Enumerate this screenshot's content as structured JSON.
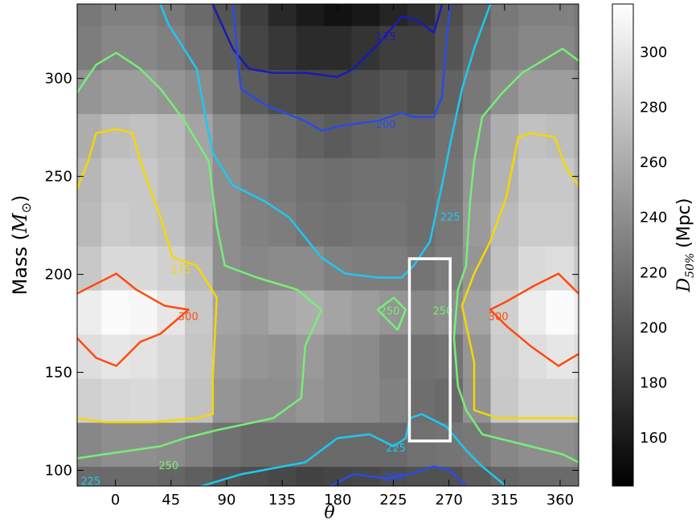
{
  "chart_data": {
    "type": "heatmap",
    "xlabel": "θ",
    "ylabel": {
      "text": "Mass (",
      "symbol": "M",
      "subscript": "⊙",
      "close": ")"
    },
    "colorbar_label": {
      "symbol": "D",
      "subscript": "50%",
      "unit": "(Mpc)"
    },
    "xlim": [
      -31,
      375
    ],
    "ylim": [
      92,
      338
    ],
    "xticks": [
      0,
      45,
      90,
      135,
      180,
      225,
      270,
      315,
      360
    ],
    "yticks": [
      100,
      150,
      200,
      250,
      300
    ],
    "clim": [
      142.5,
      317.5
    ],
    "cticks": [
      160,
      180,
      200,
      220,
      240,
      260,
      280,
      300
    ],
    "x_bins": [
      -33.75,
      -11.25,
      11.25,
      33.75,
      56.25,
      78.75,
      101.25,
      123.75,
      146.25,
      168.75,
      191.25,
      213.75,
      236.25,
      258.75,
      281.25,
      303.75,
      326.25,
      348.75,
      371.25,
      393.75
    ],
    "y_bins": [
      79.5,
      102,
      124.5,
      147,
      169.5,
      192,
      214.5,
      237,
      259.5,
      282,
      304.5,
      327,
      349.5
    ],
    "z": [
      [
        215,
        215,
        215,
        212,
        208,
        200,
        195,
        192,
        188,
        190,
        192,
        195,
        198,
        198,
        205,
        212,
        215,
        215,
        215
      ],
      [
        235,
        240,
        240,
        238,
        230,
        220,
        215,
        215,
        215,
        215,
        215,
        215,
        220,
        222,
        225,
        235,
        240,
        240,
        235
      ],
      [
        285,
        290,
        292,
        288,
        275,
        245,
        240,
        240,
        245,
        240,
        238,
        232,
        218,
        215,
        242,
        280,
        290,
        290,
        285
      ],
      [
        295,
        300,
        298,
        292,
        278,
        250,
        245,
        242,
        248,
        240,
        238,
        228,
        220,
        222,
        245,
        282,
        295,
        300,
        295
      ],
      [
        305,
        315,
        312,
        300,
        280,
        255,
        250,
        258,
        262,
        255,
        250,
        245,
        235,
        240,
        255,
        285,
        305,
        315,
        305
      ],
      [
        280,
        292,
        292,
        285,
        270,
        240,
        235,
        238,
        238,
        230,
        228,
        228,
        222,
        228,
        245,
        275,
        292,
        295,
        280
      ],
      [
        270,
        282,
        280,
        275,
        262,
        240,
        232,
        228,
        222,
        220,
        222,
        222,
        218,
        225,
        248,
        270,
        282,
        282,
        270
      ],
      [
        268,
        280,
        280,
        272,
        258,
        240,
        230,
        225,
        220,
        218,
        220,
        220,
        218,
        222,
        245,
        265,
        280,
        280,
        268
      ],
      [
        262,
        272,
        275,
        270,
        255,
        238,
        225,
        218,
        210,
        205,
        210,
        212,
        210,
        220,
        240,
        262,
        275,
        272,
        262
      ],
      [
        245,
        250,
        250,
        245,
        238,
        220,
        205,
        195,
        190,
        190,
        195,
        200,
        195,
        210,
        225,
        240,
        250,
        250,
        245
      ],
      [
        228,
        235,
        235,
        230,
        222,
        205,
        190,
        180,
        172,
        172,
        178,
        185,
        185,
        200,
        215,
        228,
        235,
        235,
        228
      ],
      [
        225,
        230,
        230,
        225,
        215,
        200,
        185,
        170,
        160,
        155,
        158,
        168,
        175,
        195,
        210,
        225,
        230,
        230,
        225
      ]
    ],
    "contours": [
      {
        "level": 175,
        "color": "#1a1ab8",
        "paths": [
          {
            "x": [
              78.8,
              95,
              108.1,
              127.6,
              153.6,
              179.7,
              192.7,
              212.2,
              231.8,
              244.8,
              257.8,
              264.3
            ],
            "y": [
              337.7,
              315.2,
              304.9,
              302.9,
              302.9,
              300.8,
              304.9,
              317.2,
              331.6,
              329.5,
              323.4,
              337.7
            ]
          }
        ],
        "labels": [
          {
            "x": 219,
            "y": 321
          }
        ]
      },
      {
        "level": 200,
        "color": "#2a4be6",
        "paths": [
          {
            "x": [
              95,
              98.3,
              101.6,
              121.1,
              153.6,
              166.7,
              186.2,
              212.2,
              231.8,
              241.5,
              257.8,
              264.3,
              267.6,
              270.8
            ],
            "y": [
              337.7,
              315.2,
              294.7,
              286.5,
              278.3,
              273.4,
              276.2,
              278.3,
              282.4,
              280.3,
              280.3,
              290.6,
              315.2,
              337.7
            ]
          },
          {
            "x": [
              173.2,
              192.7,
              218.8,
              238.3,
              257.8,
              270.8,
              283.9
            ],
            "y": [
              91.8,
              98,
              95.9,
              98,
              102,
              100,
              91.8
            ]
          }
        ],
        "labels": [
          {
            "x": 219,
            "y": 276
          },
          {
            "x": 225,
            "y": 96
          }
        ]
      },
      {
        "level": 225,
        "color": "#1ec8f0",
        "paths": [
          {
            "x": [
              36.5,
              43,
              65.8,
              72.3,
              78.8,
              95,
              121,
              140.6,
              166.7,
              186.2,
              212.2,
              231.8,
              241.5,
              254.6,
              264.3,
              270.8,
              280.6,
              290.4,
              303.4
            ],
            "y": [
              337.7,
              327.5,
              304.9,
              282.4,
              261.9,
              245.5,
              237.3,
              229.1,
              208.6,
              200.4,
              198.4,
              198.4,
              204.5,
              216.8,
              245.5,
              266,
              294.7,
              315.2,
              337.7
            ]
          },
          {
            "x": [
              69,
              101.6,
              153.6,
              179.7,
              205.7,
              225.3,
              235,
              238.3,
              248,
              267.6,
              283.9,
              296.9,
              316.4
            ],
            "y": [
              91.8,
              98,
              104.1,
              116.4,
              118.4,
              112.3,
              116.4,
              126.6,
              128.7,
              122.5,
              110.2,
              102,
              91.8
            ]
          }
        ],
        "labels": [
          {
            "x": 271,
            "y": 229
          },
          {
            "x": 227,
            "y": 111
          },
          {
            "x": -20,
            "y": 94
          }
        ]
      },
      {
        "level": 250,
        "color": "#77ee77",
        "paths": [
          {
            "x": [
              -31.2,
              -15.6,
              0.7,
              20.2,
              36.5,
              56,
              75.5,
              82,
              88.5,
              114.6,
              147.1,
              166.7,
              153.6,
              150.4,
              127.6,
              82,
              56,
              36.5,
              -9.1,
              -31.2
            ],
            "y": [
              292.6,
              307,
              313.1,
              304.9,
              294.7,
              278.3,
              257.8,
              225,
              204.5,
              198.4,
              192.2,
              182,
              163.5,
              136.9,
              126.6,
              120.5,
              116.4,
              112.3,
              108.2,
              106.1
            ]
          },
          {
            "x": [
              375,
              362,
              345.7,
              329.4,
              313.2,
              296.9,
              290.4,
              287.1,
              283.9,
              277.3,
              274.1,
              277.3,
              283.9,
              296.9,
              335.9,
              362,
              375
            ],
            "y": [
              309,
              315.2,
              309,
              302.9,
              292.6,
              280.3,
              257.8,
              237.3,
              204.5,
              192.2,
              167.6,
              143,
              130.7,
              118.4,
              112.3,
              108.2,
              104.1
            ]
          },
          {
            "x": [
              212.2,
              225.3,
              235,
              228.5,
              222,
              212.2
            ],
            "y": [
              182,
              188.1,
              182,
              171.7,
              175.8,
              182
            ]
          }
        ],
        "labels": [
          {
            "x": 43,
            "y": 102
          },
          {
            "x": 222,
            "y": 181
          },
          {
            "x": 265,
            "y": 181
          }
        ]
      },
      {
        "level": 275,
        "color": "#f5d800",
        "paths": [
          {
            "x": [
              -31.2,
              -22.1,
              -15.6,
              0.7,
              13.7,
              23.4,
              36.5,
              46.2,
              65.8,
              82,
              78.8,
              78.8,
              65.8,
              29.9,
              -9.1,
              -31.2
            ],
            "y": [
              243.4,
              257.8,
              272.1,
              274.2,
              272.1,
              251.6,
              229.1,
              208.6,
              204.5,
              188.1,
              147.1,
              128.7,
              126.6,
              124.6,
              124.6,
              126.6
            ]
          },
          {
            "x": [
              375,
              365.2,
              355.5,
              335.9,
              326.2,
              316.4,
              303.4,
              290.4,
              280.6,
              290.4,
              290.4,
              309.9,
              348.9,
              375
            ],
            "y": [
              245.5,
              253.7,
              270.1,
              272.1,
              270.1,
              239.3,
              216.8,
              200.4,
              184,
              155.3,
              130.7,
              126.6,
              126.6,
              126.6
            ]
          }
        ],
        "labels": [
          {
            "x": 53,
            "y": 202
          }
        ]
      },
      {
        "level": 300,
        "color": "#ff4a10",
        "paths": [
          {
            "x": [
              -31.2,
              0.7,
              16.9,
              39.7,
              59.2,
              36.5,
              20.2,
              0.7,
              -15.6,
              -31.2
            ],
            "y": [
              190.2,
              200.4,
              192.2,
              184,
              182,
              169.7,
              165.6,
              153.3,
              157.4,
              167.6
            ]
          },
          {
            "x": [
              375,
              358.7,
              339.2,
              316.4,
              303.4,
              316.4,
              335.9,
              358.7,
              375
            ],
            "y": [
              190.2,
              200.4,
              194.3,
              186.1,
              182,
              173.8,
              163.5,
              153.3,
              159.4
            ]
          }
        ],
        "labels": [
          {
            "x": 59,
            "y": 178
          },
          {
            "x": 310,
            "y": 178
          }
        ]
      }
    ],
    "highlight": {
      "x": [
        238,
        271
      ],
      "y": [
        115,
        208
      ]
    }
  }
}
